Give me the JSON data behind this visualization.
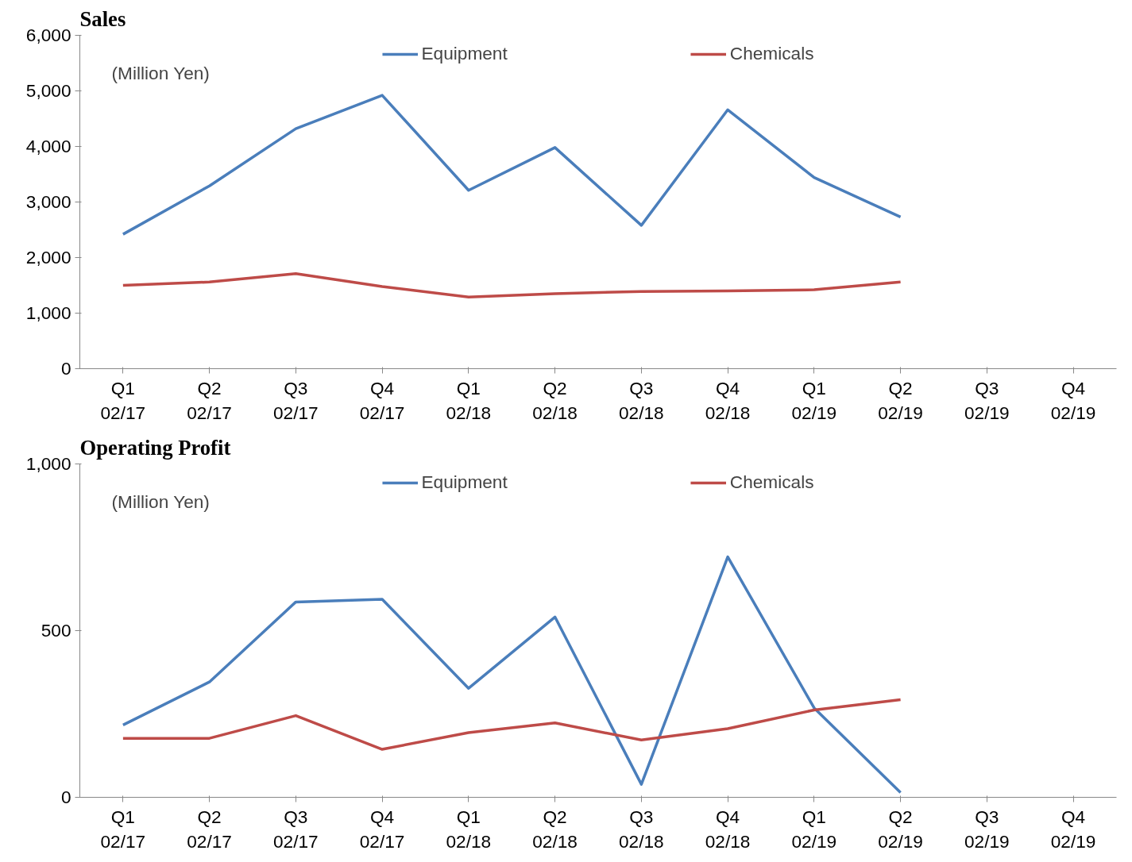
{
  "chart_data": [
    {
      "type": "line",
      "title": "Sales",
      "annotations": [
        "(Million Yen)"
      ],
      "categories": [
        "Q1\n02/17",
        "Q2\n02/17",
        "Q3\n02/17",
        "Q4\n02/17",
        "Q1\n02/18",
        "Q2\n02/18",
        "Q3\n02/18",
        "Q4\n02/18",
        "Q1\n02/19",
        "Q2\n02/19",
        "Q3\n02/19",
        "Q4\n02/19"
      ],
      "series": [
        {
          "name": "Equipment",
          "color": "#4a7ebb",
          "values": [
            2420,
            3290,
            4320,
            4920,
            3210,
            3980,
            2580,
            4660,
            3440,
            2730,
            null,
            null
          ]
        },
        {
          "name": "Chemicals",
          "color": "#be4b48",
          "values": [
            1500,
            1560,
            1710,
            1480,
            1290,
            1350,
            1390,
            1400,
            1420,
            1560,
            null,
            null
          ]
        }
      ],
      "ylim": [
        0,
        6000
      ],
      "yticks": [
        {
          "value": 0,
          "label": "0"
        },
        {
          "value": 1000,
          "label": "1,000"
        },
        {
          "value": 2000,
          "label": "2,000"
        },
        {
          "value": 3000,
          "label": "3,000"
        },
        {
          "value": 4000,
          "label": "4,000"
        },
        {
          "value": 5000,
          "label": "5,000"
        },
        {
          "value": 6000,
          "label": "6,000"
        }
      ],
      "grid": false,
      "legend": "top",
      "marker": "none",
      "line_style": "solid"
    },
    {
      "type": "line",
      "title": "Operating Profit",
      "annotations": [
        "(Million Yen)"
      ],
      "categories": [
        "Q1\n02/17",
        "Q2\n02/17",
        "Q3\n02/17",
        "Q4\n02/17",
        "Q1\n02/18",
        "Q2\n02/18",
        "Q3\n02/18",
        "Q4\n02/18",
        "Q1\n02/19",
        "Q2\n02/19",
        "Q3\n02/19",
        "Q4\n02/19"
      ],
      "series": [
        {
          "name": "Equipment",
          "color": "#4a7ebb",
          "values": [
            217,
            346,
            586,
            594,
            327,
            541,
            39,
            721,
            268,
            14,
            null,
            null
          ]
        },
        {
          "name": "Chemicals",
          "color": "#be4b48",
          "values": [
            177,
            177,
            245,
            144,
            194,
            223,
            172,
            206,
            262,
            293,
            null,
            null
          ]
        }
      ],
      "ylim": [
        0,
        1000
      ],
      "yticks": [
        {
          "value": 0,
          "label": "0"
        },
        {
          "value": 500,
          "label": "500"
        },
        {
          "value": 1000,
          "label": "1,000"
        }
      ],
      "grid": false,
      "legend": "top",
      "marker": "none",
      "line_style": "solid"
    }
  ]
}
